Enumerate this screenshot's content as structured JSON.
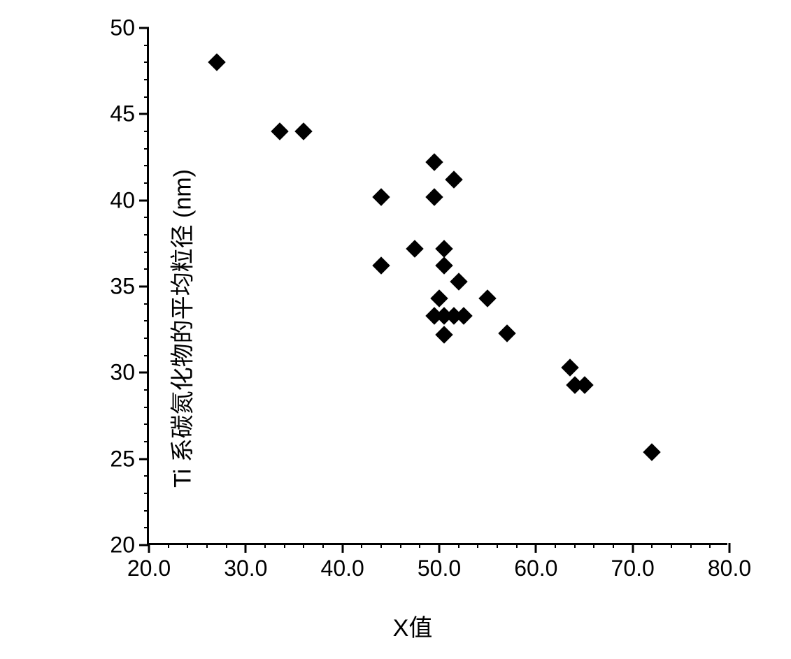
{
  "chart": {
    "type": "scatter",
    "xlabel": "X值",
    "ylabel": "Ti 系碳氮化物的平均粒径 (nm)",
    "label_fontsize": 34,
    "tick_fontsize": 32,
    "xlim": [
      20.0,
      80.0
    ],
    "ylim": [
      20,
      50
    ],
    "xtick_major_step": 10.0,
    "xtick_minor_step": 2.0,
    "ytick_major_step": 5,
    "ytick_minor_step": 1,
    "xtick_labels": [
      "20.0",
      "30.0",
      "40.0",
      "50.0",
      "60.0",
      "70.0",
      "80.0"
    ],
    "ytick_labels": [
      "20",
      "25",
      "30",
      "35",
      "40",
      "45",
      "50"
    ],
    "background_color": "#ffffff",
    "axis_color": "#000000",
    "marker_color": "#000000",
    "marker_style": "diamond",
    "marker_size": 18,
    "points": [
      {
        "x": 27.0,
        "y": 48.0
      },
      {
        "x": 33.5,
        "y": 44.0
      },
      {
        "x": 36.0,
        "y": 44.0
      },
      {
        "x": 44.0,
        "y": 40.2
      },
      {
        "x": 44.0,
        "y": 36.2
      },
      {
        "x": 47.5,
        "y": 37.2
      },
      {
        "x": 49.5,
        "y": 42.2
      },
      {
        "x": 49.5,
        "y": 40.2
      },
      {
        "x": 49.5,
        "y": 33.3
      },
      {
        "x": 50.0,
        "y": 34.3
      },
      {
        "x": 50.5,
        "y": 37.2
      },
      {
        "x": 50.5,
        "y": 36.2
      },
      {
        "x": 50.5,
        "y": 33.3
      },
      {
        "x": 50.5,
        "y": 32.2
      },
      {
        "x": 51.5,
        "y": 41.2
      },
      {
        "x": 51.5,
        "y": 33.3
      },
      {
        "x": 52.0,
        "y": 35.3
      },
      {
        "x": 52.5,
        "y": 33.3
      },
      {
        "x": 55.0,
        "y": 34.3
      },
      {
        "x": 57.0,
        "y": 32.3
      },
      {
        "x": 63.5,
        "y": 30.3
      },
      {
        "x": 64.0,
        "y": 29.3
      },
      {
        "x": 65.0,
        "y": 29.3
      },
      {
        "x": 72.0,
        "y": 25.4
      }
    ]
  }
}
